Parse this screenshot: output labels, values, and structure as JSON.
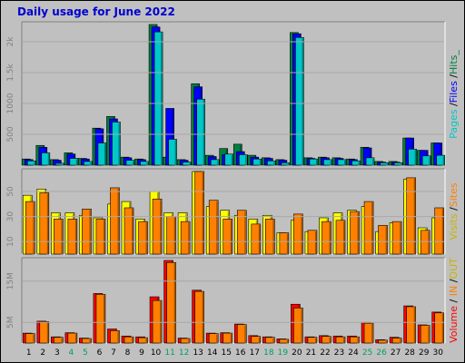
{
  "title": "Daily usage for June 2022",
  "colors": {
    "pages": "#00c8c8",
    "files": "#0000ff",
    "hits": "#008040",
    "visits": "#ffff00",
    "sites": "#ff8000",
    "volume": "#ff0000",
    "in": "#ff8000",
    "out": "#ffff00",
    "weekend": "#00a060",
    "weekday": "#000000"
  },
  "legend": {
    "top": [
      {
        "text": "Pages",
        "color": "#00c8c8"
      },
      {
        "text": " /",
        "color": "#000000"
      },
      {
        "text": "Files",
        "color": "#0000ff"
      },
      {
        "text": " /",
        "color": "#000000"
      },
      {
        "text": "Hits_",
        "color": "#008040"
      }
    ],
    "middle": [
      {
        "text": "Visits",
        "color": "#c8b400"
      },
      {
        "text": " /",
        "color": "#000000"
      },
      {
        "text": "Sites",
        "color": "#ff8000"
      }
    ],
    "bottom": [
      {
        "text": "Volume",
        "color": "#ff0000"
      },
      {
        "text": " / ",
        "color": "#000000"
      },
      {
        "text": "IN",
        "color": "#ff8000"
      },
      {
        "text": " /",
        "color": "#000000"
      },
      {
        "text": "OUT",
        "color": "#c8b400"
      }
    ]
  },
  "chart_data": [
    {
      "type": "bar",
      "name": "hits-files-pages",
      "categories": [
        "1",
        "2",
        "3",
        "4",
        "5",
        "6",
        "7",
        "8",
        "9",
        "10",
        "11",
        "12",
        "13",
        "14",
        "15",
        "16",
        "17",
        "18",
        "19",
        "20",
        "21",
        "22",
        "23",
        "24",
        "25",
        "26",
        "27",
        "28",
        "29",
        "30"
      ],
      "weekend_days": [
        "4",
        "5",
        "11",
        "12",
        "18",
        "19",
        "25",
        "26"
      ],
      "yticks": [
        500,
        1000,
        1500,
        2000
      ],
      "ytick_labels": [
        "500",
        "1000",
        "1.5k",
        "2k"
      ],
      "ylim": [
        0,
        2280
      ],
      "series": [
        {
          "name": "Hits",
          "values": [
            100,
            320,
            90,
            200,
            110,
            600,
            790,
            130,
            100,
            2280,
            130,
            90,
            1320,
            160,
            270,
            340,
            160,
            120,
            90,
            2150,
            120,
            130,
            120,
            100,
            290,
            60,
            60,
            440,
            240,
            360
          ]
        },
        {
          "name": "Files",
          "values": [
            90,
            290,
            80,
            180,
            100,
            590,
            750,
            120,
            90,
            2240,
            920,
            80,
            1270,
            140,
            170,
            220,
            130,
            110,
            80,
            2130,
            110,
            120,
            110,
            90,
            280,
            50,
            50,
            440,
            240,
            360
          ]
        },
        {
          "name": "Pages",
          "values": [
            70,
            200,
            30,
            110,
            60,
            360,
            700,
            80,
            60,
            2160,
            420,
            50,
            1070,
            90,
            180,
            170,
            100,
            70,
            40,
            2070,
            100,
            90,
            90,
            70,
            120,
            40,
            40,
            260,
            150,
            160
          ]
        }
      ]
    },
    {
      "type": "bar",
      "name": "visits-sites",
      "categories": [
        "1",
        "2",
        "3",
        "4",
        "5",
        "6",
        "7",
        "8",
        "9",
        "10",
        "11",
        "12",
        "13",
        "14",
        "15",
        "16",
        "17",
        "18",
        "19",
        "20",
        "21",
        "22",
        "23",
        "24",
        "25",
        "26",
        "27",
        "28",
        "29",
        "30"
      ],
      "yticks": [
        10,
        30,
        50
      ],
      "ytick_labels": [
        "10",
        "30",
        "50"
      ],
      "ylim": [
        0,
        66
      ],
      "series": [
        {
          "name": "Visits",
          "values": [
            47,
            52,
            33,
            33,
            31,
            29,
            40,
            42,
            28,
            50,
            33,
            33,
            66,
            38,
            35,
            31,
            28,
            31,
            17,
            27,
            18,
            29,
            33,
            35,
            38,
            18,
            25,
            60,
            21,
            29
          ]
        },
        {
          "name": "Sites",
          "values": [
            42,
            49,
            28,
            28,
            36,
            28,
            53,
            37,
            26,
            44,
            30,
            26,
            66,
            43,
            28,
            35,
            24,
            28,
            17,
            32,
            19,
            26,
            27,
            34,
            42,
            23,
            26,
            61,
            19,
            37
          ]
        }
      ]
    },
    {
      "type": "bar",
      "name": "volume-in-out",
      "categories": [
        "1",
        "2",
        "3",
        "4",
        "5",
        "6",
        "7",
        "8",
        "9",
        "10",
        "11",
        "12",
        "13",
        "14",
        "15",
        "16",
        "17",
        "18",
        "19",
        "20",
        "21",
        "22",
        "23",
        "24",
        "25",
        "26",
        "27",
        "28",
        "29",
        "30"
      ],
      "yticks": [
        5,
        15
      ],
      "ytick_labels": [
        "5M",
        "15M"
      ],
      "ylim": [
        0,
        20
      ],
      "series": [
        {
          "name": "Volume",
          "values": [
            2.4,
            5.3,
            1.5,
            2.5,
            1.2,
            12.0,
            3.4,
            1.7,
            1.5,
            11.2,
            20.0,
            1.2,
            12.8,
            2.4,
            2.5,
            4.6,
            1.8,
            1.5,
            1.0,
            9.4,
            1.5,
            1.8,
            1.7,
            1.7,
            5.0,
            0.8,
            1.4,
            9.0,
            4.4,
            7.5
          ]
        },
        {
          "name": "Volume (out)",
          "values": [
            2.3,
            5.2,
            1.4,
            2.4,
            1.1,
            11.8,
            3.0,
            1.5,
            1.3,
            10.3,
            19.5,
            1.1,
            12.5,
            2.3,
            2.4,
            4.5,
            1.6,
            1.4,
            0.9,
            8.5,
            1.4,
            1.6,
            1.5,
            1.5,
            4.8,
            0.7,
            1.2,
            8.8,
            4.3,
            7.3
          ]
        }
      ]
    }
  ]
}
